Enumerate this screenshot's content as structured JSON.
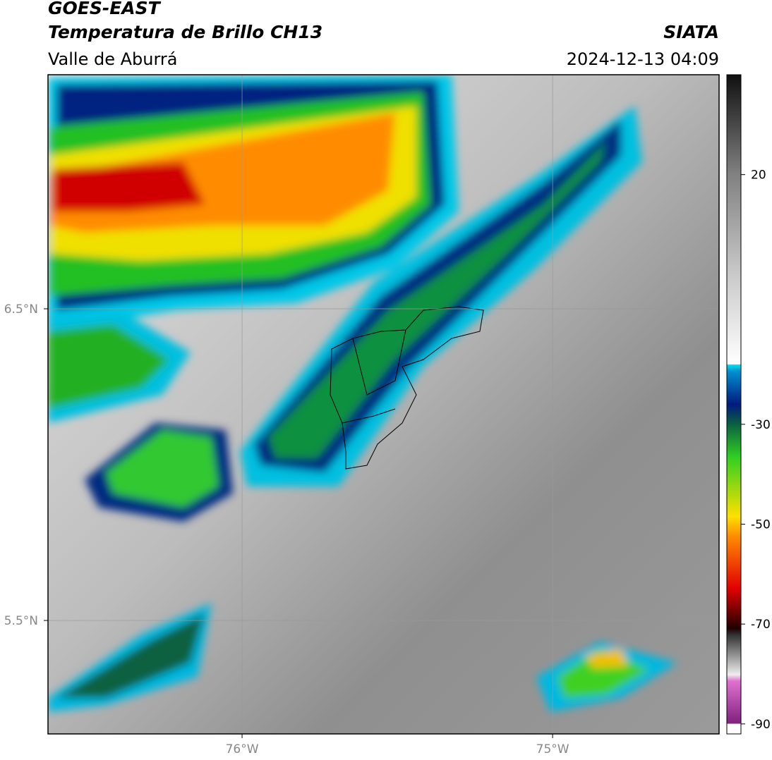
{
  "header": {
    "source": "GOES-EAST",
    "product": "Temperatura de Brillo CH13",
    "region": "Valle de Aburrá",
    "agency": "SIATA",
    "datetime": "2024-12-13 04:09"
  },
  "map": {
    "xlim": [
      -76.625,
      -74.464
    ],
    "ylim": [
      5.136,
      7.251
    ],
    "xticks": [
      {
        "value": -76,
        "label": "76°W"
      },
      {
        "value": -75,
        "label": "75°W"
      }
    ],
    "yticks": [
      {
        "value": 6.5,
        "label": "6.5°N"
      },
      {
        "value": 5.5,
        "label": "5.5°N"
      }
    ],
    "grid": true
  },
  "colorbar": {
    "lim": [
      -92,
      40
    ],
    "ticks": [
      20,
      -30,
      -50,
      -70,
      -90
    ]
  }
}
